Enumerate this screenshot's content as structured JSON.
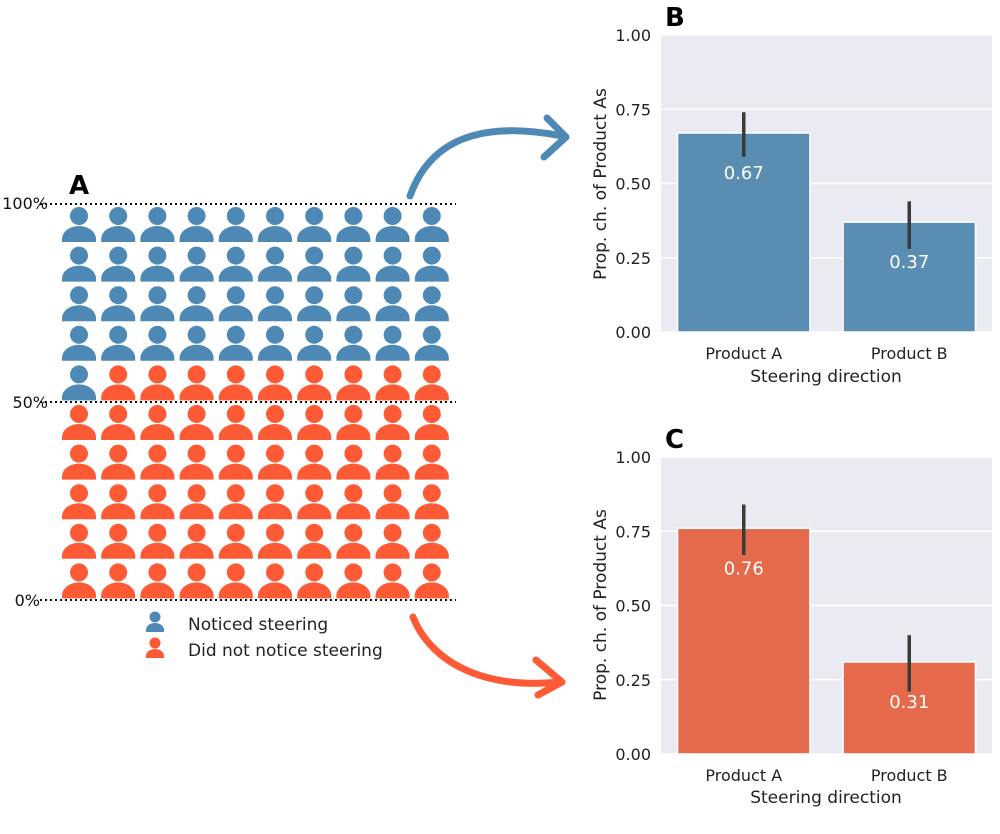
{
  "panel_letters": {
    "a": "A",
    "b": "B",
    "c": "C"
  },
  "colors": {
    "noticed": "#4e89b5",
    "not_noticed": "#fe5a35",
    "bar_b": "#5a8db2",
    "bar_c": "#e56a4c",
    "plot_bg": "#eaeaf2",
    "error_bar": "#3a3a3a"
  },
  "chart_data": [
    {
      "id": "A",
      "type": "waffle",
      "title": "A",
      "rows": 10,
      "cols": 10,
      "total": 100,
      "categories": [
        "Noticed steering",
        "Did not notice steering"
      ],
      "values": [
        41,
        59
      ],
      "percent_labels": [
        "100%",
        "50%",
        "0%"
      ],
      "legend": [
        "Noticed steering",
        "Did not notice steering"
      ],
      "icon": "person-icon"
    },
    {
      "id": "B",
      "type": "bar",
      "title": "B",
      "categories": [
        "Product A",
        "Product B"
      ],
      "values": [
        0.67,
        0.37
      ],
      "value_labels": [
        "0.67",
        "0.37"
      ],
      "error_low": [
        0.59,
        0.28
      ],
      "error_high": [
        0.74,
        0.44
      ],
      "xlabel": "Steering direction",
      "ylabel": "Prop. ch. of Product As",
      "ylim": [
        0,
        1
      ],
      "yticks": [
        "0.00",
        "0.25",
        "0.50",
        "0.75",
        "1.00"
      ],
      "grid": true
    },
    {
      "id": "C",
      "type": "bar",
      "title": "C",
      "categories": [
        "Product A",
        "Product B"
      ],
      "values": [
        0.76,
        0.31
      ],
      "value_labels": [
        "0.76",
        "0.31"
      ],
      "error_low": [
        0.67,
        0.21
      ],
      "error_high": [
        0.84,
        0.4
      ],
      "xlabel": "Steering direction",
      "ylabel": "Prop. ch. of Product As",
      "ylim": [
        0,
        1
      ],
      "yticks": [
        "0.00",
        "0.25",
        "0.50",
        "0.75",
        "1.00"
      ],
      "grid": true
    }
  ]
}
